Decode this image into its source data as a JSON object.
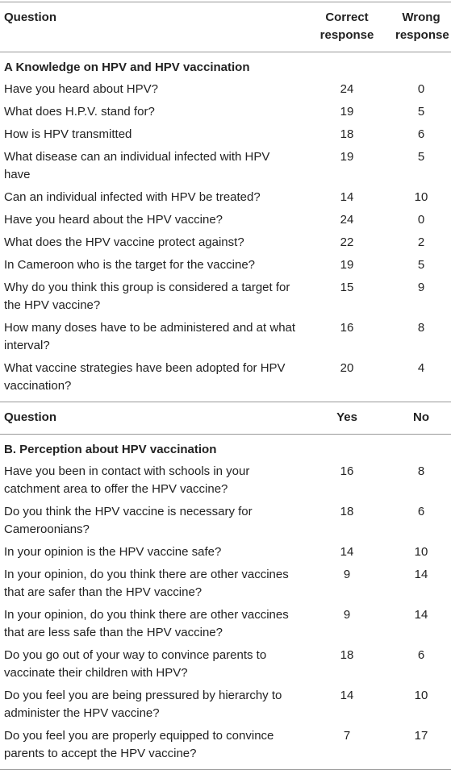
{
  "table": {
    "sections": [
      {
        "header": [
          "Question",
          "Correct response",
          "Wrong response"
        ],
        "title": "A Knowledge on HPV and HPV vaccination",
        "rows": [
          [
            "Have you heard about HPV?",
            24,
            0
          ],
          [
            "What does H.P.V. stand for?",
            19,
            5
          ],
          [
            "How is HPV transmitted",
            18,
            6
          ],
          [
            "What disease can an individual infected with HPV have",
            19,
            5
          ],
          [
            "Can an individual infected with HPV be treated?",
            14,
            10
          ],
          [
            "Have you heard about the HPV vaccine?",
            24,
            0
          ],
          [
            "What does the HPV vaccine protect against?",
            22,
            2
          ],
          [
            "In Cameroon who is the target for the vaccine?",
            19,
            5
          ],
          [
            "Why do you think this group is considered a target for the HPV vaccine?",
            15,
            9
          ],
          [
            "How many doses have to be administered and at what interval?",
            16,
            8
          ],
          [
            "What vaccine strategies have been adopted for HPV vaccination?",
            20,
            4
          ]
        ]
      },
      {
        "header": [
          "Question",
          "Yes",
          "No"
        ],
        "title": "B. Perception about HPV vaccination",
        "rows": [
          [
            "Have you been in contact with schools in your catchment area to offer the HPV vaccine?",
            16,
            8
          ],
          [
            "Do you think the HPV vaccine is necessary for Cameroonians?",
            18,
            6
          ],
          [
            "In your opinion is the HPV vaccine safe?",
            14,
            10
          ],
          [
            "In your opinion, do you think there are other vaccines that are safer than the HPV vaccine?",
            9,
            14
          ],
          [
            "In your opinion, do you think there are other vaccines that are less safe than the HPV vaccine?",
            9,
            14
          ],
          [
            "Do you go out of your way to convince parents to vaccinate their children with HPV?",
            18,
            6
          ],
          [
            "Do you feel you are being pressured by hierarchy to administer the HPV vaccine?",
            14,
            10
          ],
          [
            "Do you feel you are properly equipped to convince parents to accept the HPV vaccine?",
            7,
            17
          ]
        ]
      }
    ]
  }
}
